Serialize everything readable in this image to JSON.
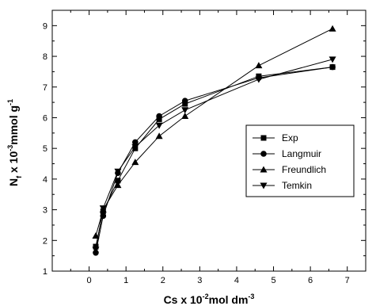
{
  "chart_data": {
    "type": "line",
    "x_label_text": "Cs x 10",
    "x_label_sup": "-2",
    "x_label_unit": "mol dm",
    "x_label_unit_sup": "-3",
    "y_label_main": "N",
    "y_label_sub": "f",
    "y_label_mid": " x 10",
    "y_label_sup": "-3",
    "y_label_unit": "mmol g",
    "y_label_unit_sup": "-1",
    "xlim": [
      -1,
      7.5
    ],
    "ylim": [
      1,
      9.5
    ],
    "x_ticks": [
      0,
      1,
      2,
      3,
      4,
      5,
      6,
      7
    ],
    "y_ticks": [
      1,
      2,
      3,
      4,
      5,
      6,
      7,
      8,
      9
    ],
    "grid": false,
    "legend_position": "right-middle",
    "series": [
      {
        "name": "Exp",
        "marker": "square",
        "x": [
          0.18,
          0.38,
          0.78,
          1.25,
          1.9,
          2.6,
          4.6,
          6.6
        ],
        "y": [
          1.8,
          2.95,
          3.95,
          5.0,
          5.95,
          6.45,
          7.35,
          7.65
        ]
      },
      {
        "name": "Langmuir",
        "marker": "circle",
        "x": [
          0.18,
          0.38,
          0.78,
          1.25,
          1.9,
          2.6,
          4.6,
          6.6
        ],
        "y": [
          1.6,
          2.8,
          4.2,
          5.2,
          6.05,
          6.55,
          7.3,
          7.65
        ]
      },
      {
        "name": "Freundlich",
        "marker": "triangle-up",
        "x": [
          0.18,
          0.38,
          0.78,
          1.25,
          1.9,
          2.6,
          4.6,
          6.6
        ],
        "y": [
          2.15,
          3.0,
          3.8,
          4.55,
          5.4,
          6.05,
          7.7,
          8.9
        ]
      },
      {
        "name": "Temkin",
        "marker": "triangle-down",
        "x": [
          0.18,
          0.38,
          0.78,
          1.25,
          1.9,
          2.6,
          4.6,
          6.6
        ],
        "y": [
          1.7,
          3.05,
          4.25,
          5.05,
          5.75,
          6.25,
          7.25,
          7.9
        ]
      }
    ]
  }
}
